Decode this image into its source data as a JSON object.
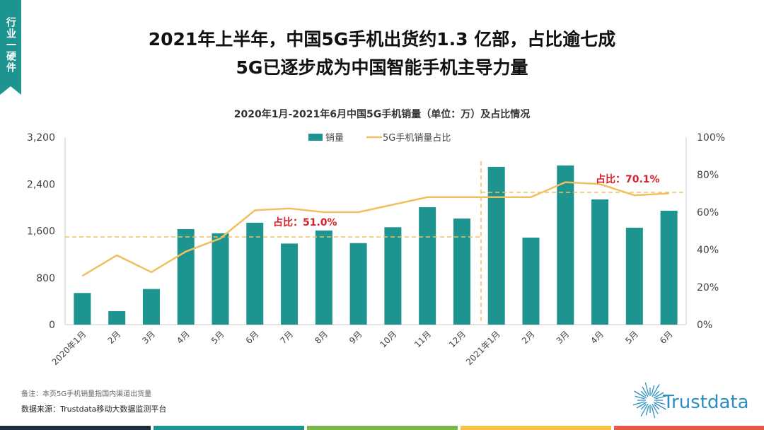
{
  "tag": "行业一硬件",
  "headline": [
    "2021年上半年，中国5G手机出货约1.3 亿部，占比逾七成",
    "5G已逐步成为中国智能手机主导力量"
  ],
  "chart_data": {
    "type": "bar+line",
    "title": "2020年1月-2021年6月中国5G手机销量（单位：万）及占比情况",
    "categories": [
      "2020年1月",
      "2月",
      "3月",
      "4月",
      "5月",
      "6月",
      "7月",
      "8月",
      "9月",
      "10月",
      "11月",
      "12月",
      "2021年1月",
      "2月",
      "3月",
      "4月",
      "5月",
      "6月"
    ],
    "series": [
      {
        "name": "销量",
        "type": "bar",
        "axis": "left",
        "color": "#1e9490",
        "values": [
          540,
          230,
          608,
          1631,
          1559,
          1740,
          1384,
          1607,
          1392,
          1663,
          2005,
          1812,
          2694,
          1486,
          2717,
          2138,
          1655,
          1945
        ]
      },
      {
        "name": "5G手机销量占比",
        "type": "line",
        "axis": "right",
        "color": "#f0c060",
        "values": [
          26,
          37,
          28,
          39,
          46,
          61,
          62,
          60,
          60,
          64,
          68,
          68,
          68,
          68,
          76,
          75,
          69,
          70
        ]
      }
    ],
    "left_axis": {
      "ylim": [
        0,
        3200
      ],
      "ticks": [
        "0",
        "800",
        "1,600",
        "2,400",
        "3,200"
      ]
    },
    "right_axis": {
      "ylim": [
        0,
        100
      ],
      "ticks": [
        "0%",
        "20%",
        "40%",
        "60%",
        "80%",
        "100%"
      ]
    },
    "annotations": [
      "占比：51.0%",
      "占比：70.1%"
    ],
    "legend": "top-center",
    "grid": false
  },
  "footer": {
    "note": "备注：本页5G手机销量指国内渠道出货量",
    "source": "数据来源：Trustdata移动大数据监测平台",
    "logo": "Trustdata"
  },
  "bands": [
    "#1f2d3a",
    "#1e9490",
    "#7ab648",
    "#f5c242",
    "#e8584a"
  ]
}
